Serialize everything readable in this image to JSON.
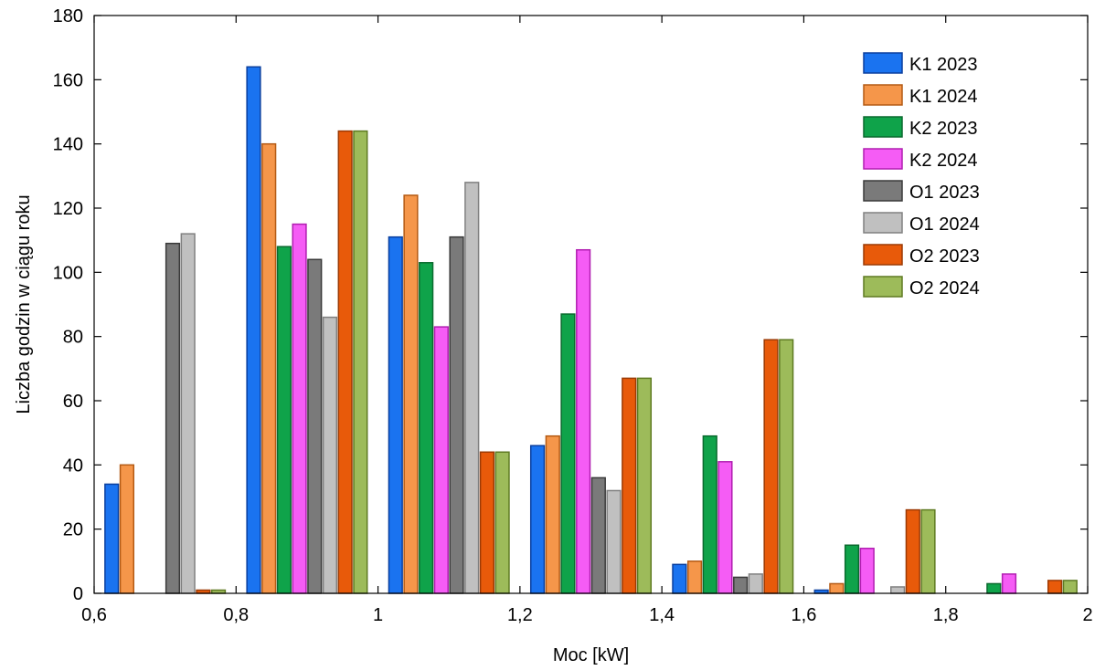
{
  "chart_data": {
    "type": "bar",
    "xlabel": "Moc [kW]",
    "ylabel": "Liczba godzin w ciągu roku",
    "xlim": [
      0.6,
      2.0
    ],
    "ylim": [
      0,
      180
    ],
    "x_ticks": [
      "0,6",
      "0,8",
      "1",
      "1,2",
      "1,4",
      "1,6",
      "1,8",
      "2"
    ],
    "y_ticks": [
      "0",
      "20",
      "40",
      "60",
      "80",
      "100",
      "120",
      "140",
      "160",
      "180"
    ],
    "x_tick_values": [
      0.6,
      0.8,
      1.0,
      1.2,
      1.4,
      1.6,
      1.8,
      2.0
    ],
    "y_tick_values": [
      0,
      20,
      40,
      60,
      80,
      100,
      120,
      140,
      160,
      180
    ],
    "bin_width": 0.2,
    "bin_starts": [
      0.6,
      0.8,
      1.0,
      1.2,
      1.4,
      1.6,
      1.8
    ],
    "legend_position": "top-right",
    "grid": false,
    "series": [
      {
        "name": "K1 2023",
        "color": "#1a73f0",
        "stroke": "#0a3f9e",
        "values": [
          34,
          164,
          111,
          46,
          9,
          1,
          0
        ]
      },
      {
        "name": "K1 2024",
        "color": "#f5964a",
        "stroke": "#b45a14",
        "values": [
          40,
          140,
          124,
          49,
          10,
          3,
          0
        ]
      },
      {
        "name": "K2 2023",
        "color": "#0fa34a",
        "stroke": "#0a6a2e",
        "values": [
          0,
          108,
          103,
          87,
          49,
          15,
          3
        ]
      },
      {
        "name": "K2 2024",
        "color": "#f55cf5",
        "stroke": "#b01eb0",
        "values": [
          0,
          115,
          83,
          107,
          41,
          14,
          6
        ]
      },
      {
        "name": "O1 2023",
        "color": "#7a7a7a",
        "stroke": "#3a3a3a",
        "values": [
          109,
          104,
          111,
          36,
          5,
          0,
          0
        ]
      },
      {
        "name": "O1 2024",
        "color": "#c0c0c0",
        "stroke": "#808080",
        "values": [
          112,
          86,
          128,
          32,
          6,
          2,
          0
        ]
      },
      {
        "name": "O2 2023",
        "color": "#e85a0a",
        "stroke": "#9c3a04",
        "values": [
          1,
          144,
          44,
          67,
          79,
          26,
          4
        ]
      },
      {
        "name": "O2 2024",
        "color": "#9dbb5a",
        "stroke": "#5e7a22",
        "values": [
          1,
          144,
          44,
          67,
          79,
          26,
          4
        ]
      }
    ]
  }
}
